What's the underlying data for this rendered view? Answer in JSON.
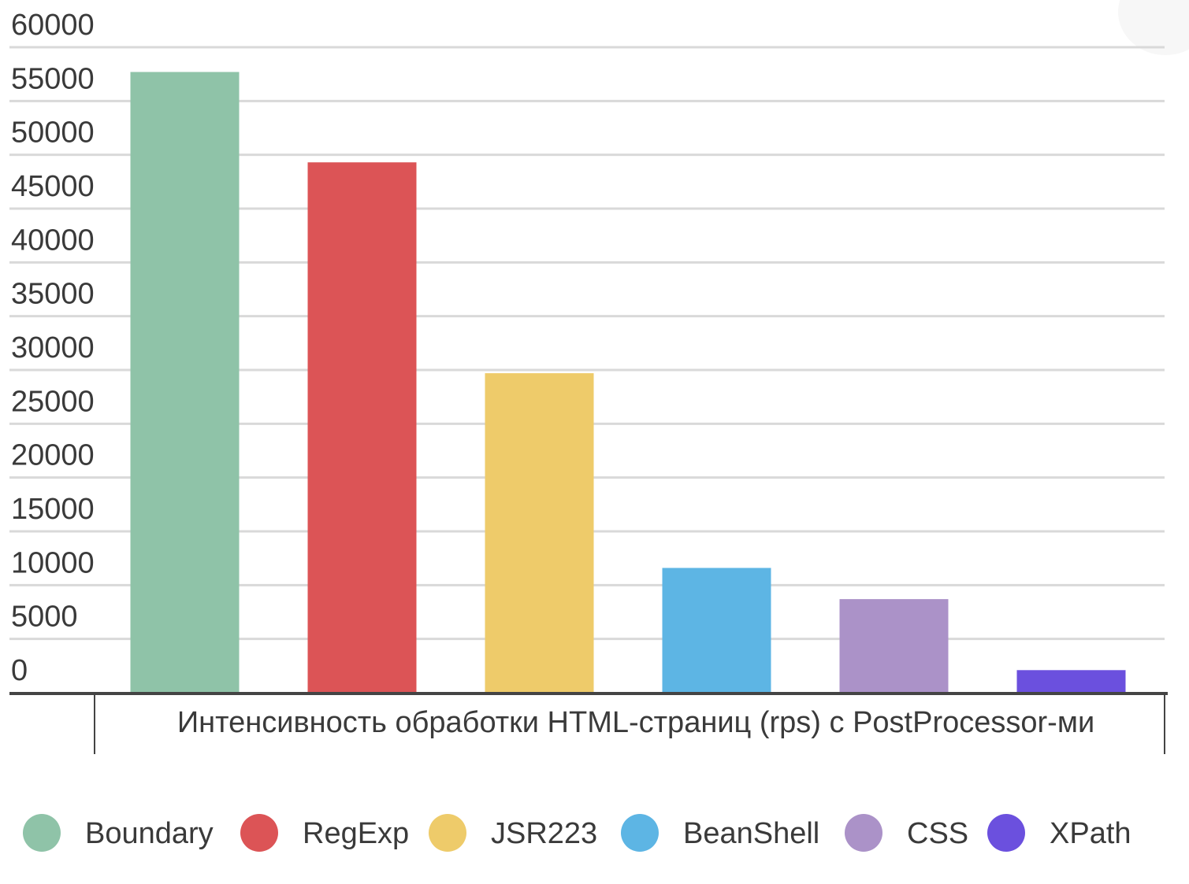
{
  "chart_data": {
    "type": "bar",
    "xlabel": "Интенсивность обработки HTML-страниц (rps) с PostProcessor-ми",
    "ylabel": "",
    "ylim": [
      0,
      60000
    ],
    "yticks": [
      0,
      5000,
      10000,
      15000,
      20000,
      25000,
      30000,
      35000,
      40000,
      45000,
      50000,
      55000,
      60000
    ],
    "categories": [
      "Boundary",
      "RegExp",
      "JSR223",
      "BeanShell",
      "CSS",
      "XPath"
    ],
    "values": [
      57700,
      49300,
      29700,
      11600,
      8700,
      2100
    ],
    "colors": [
      "#8fc3a8",
      "#dc5456",
      "#eecb6a",
      "#5db5e4",
      "#ab92c8",
      "#6b50de"
    ],
    "grid": true,
    "legend": {
      "position": "bottom",
      "entries": [
        "Boundary",
        "RegExp",
        "JSR223",
        "BeanShell",
        "CSS",
        "XPath"
      ]
    }
  }
}
